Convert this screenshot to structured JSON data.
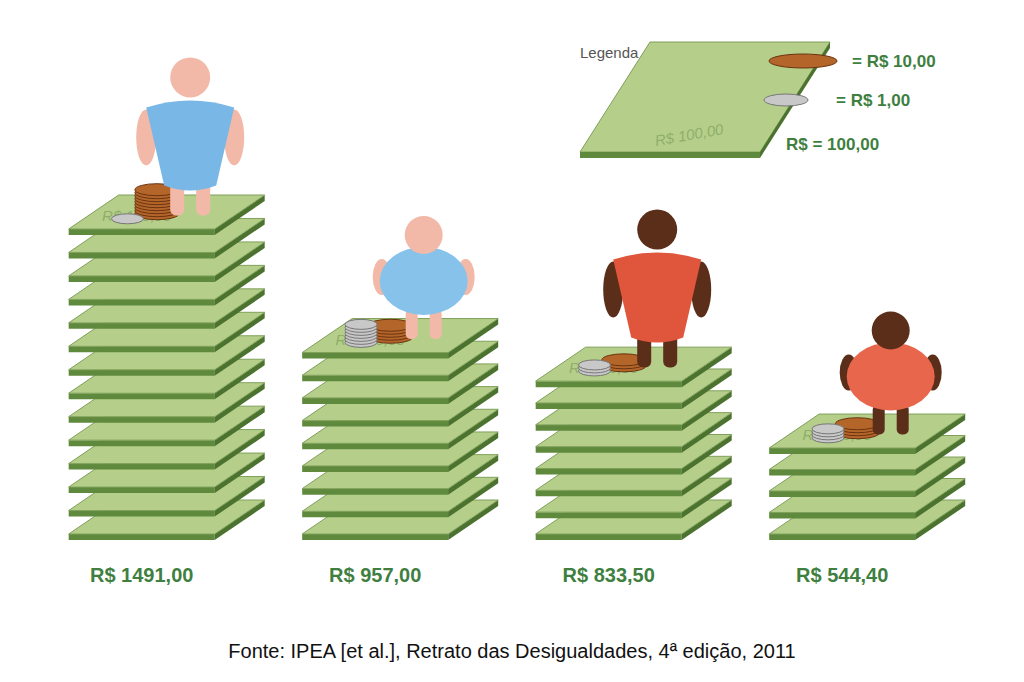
{
  "chart_data": {
    "type": "bar",
    "categories": [
      null,
      null,
      null,
      null
    ],
    "values": [
      1491.0,
      957.0,
      833.5,
      544.4
    ],
    "value_labels": [
      "R$ 1491,00",
      "R$ 957,00",
      "R$ 833,50",
      "R$ 544,40"
    ],
    "data_labels": true,
    "tick_labels": false,
    "color": "#b5cf8a",
    "annotations": [
      "Legenda",
      "= R$ 10,00",
      "= R$ 1,00",
      "R$ = 100,00",
      "R$ 100,00",
      "Fonte: IPEA [et al.], Retrato das Desigualdades, 4ª edição, 2011"
    ]
  }
}
